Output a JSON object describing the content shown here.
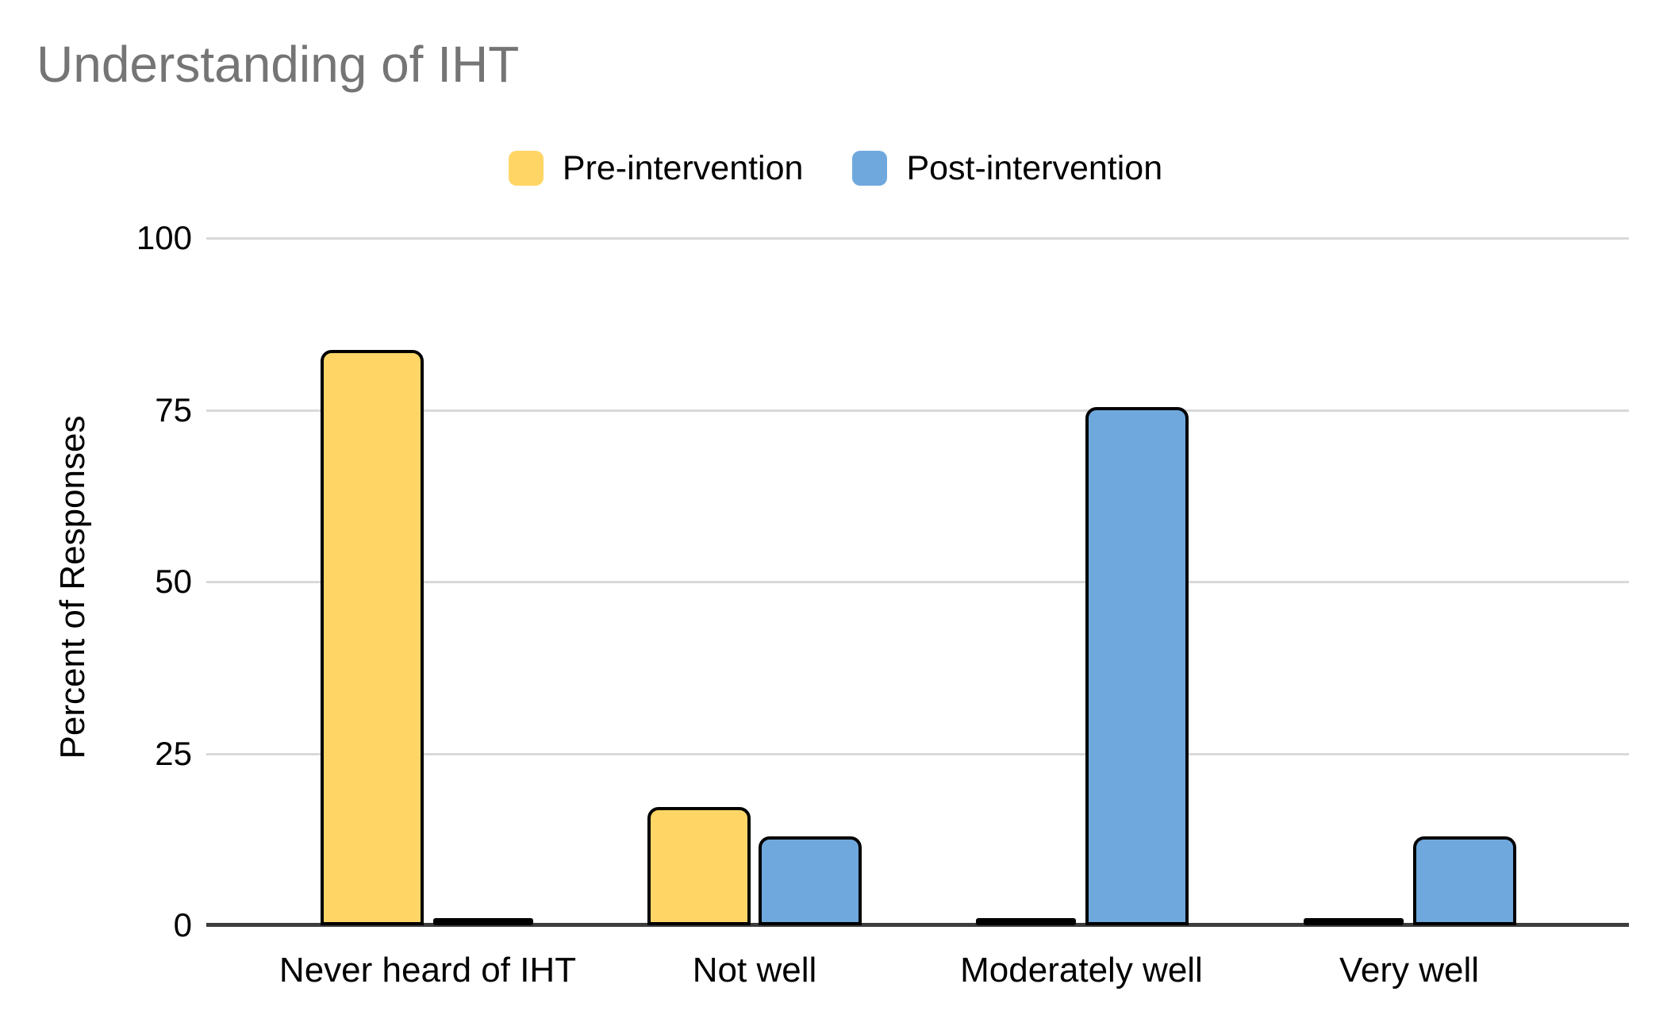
{
  "title": "Understanding of IHT",
  "legend": [
    {
      "label": "Pre-intervention",
      "color": "#FFD666"
    },
    {
      "label": "Post-intervention",
      "color": "#6FA8DC"
    }
  ],
  "y_axis": {
    "title": "Percent of Responses"
  },
  "chart_data": {
    "type": "bar",
    "title": "Understanding of IHT",
    "categories": [
      "Never heard of IHT",
      "Not well",
      "Moderately well",
      "Very well"
    ],
    "series": [
      {
        "name": "Pre-intervention",
        "color": "#FFD666",
        "values": [
          83.3,
          16.7,
          0,
          0
        ]
      },
      {
        "name": "Post-intervention",
        "color": "#6FA8DC",
        "values": [
          0,
          12.5,
          75,
          12.5
        ]
      }
    ],
    "xlabel": "",
    "ylabel": "Percent of Responses",
    "ylim": [
      0,
      100
    ],
    "yticks": [
      0,
      25,
      50,
      75,
      100
    ],
    "grid": true,
    "legend_position": "top-center",
    "bar_border_color": "#000000",
    "gridline_color": "#d9d9d9",
    "axis_line_color": "#3d3d3d",
    "title_color": "#757575"
  }
}
